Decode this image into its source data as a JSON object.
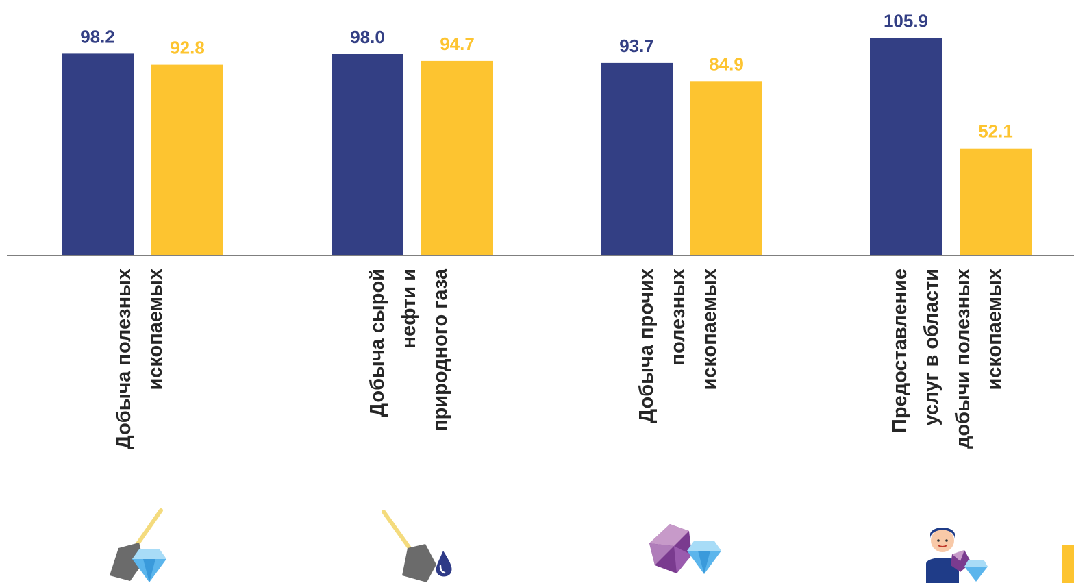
{
  "chart_data": {
    "type": "bar",
    "categories": [
      [
        "Добыча полезных",
        "ископаемых"
      ],
      [
        "Добыча сырой",
        "нефти и",
        "природного газа"
      ],
      [
        "Добыча прочих",
        "полезных",
        "ископаемых"
      ],
      [
        "Предоставление",
        "услуг в области",
        "добычи полезных",
        "ископаемых"
      ]
    ],
    "series": [
      {
        "values": [
          98.2,
          98.0,
          93.7,
          105.9
        ],
        "color": "#333F84"
      },
      {
        "values": [
          92.8,
          94.7,
          84.9,
          52.1
        ],
        "color": "#FDC430"
      }
    ],
    "ylim": [
      0,
      110
    ],
    "grid": false,
    "icons": [
      "shovel-diamond-icon",
      "shovel-oil-drop-icon",
      "gems-diamond-icon",
      "worker-gems-icon"
    ],
    "colors": {
      "axis": "#7F7F7F",
      "label": "#262626"
    }
  }
}
